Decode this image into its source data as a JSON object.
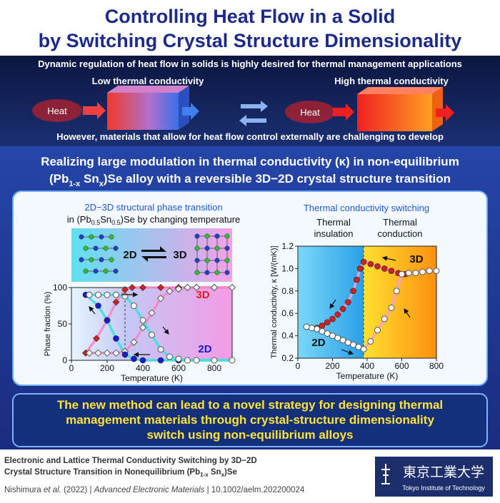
{
  "header": {
    "title": [
      "Controlling Heat Flow in a Solid",
      "by Switching Crystal Structure Dimensionality"
    ]
  },
  "banner": {
    "intro": "Dynamic regulation of heat flow in solids is highly desired for thermal management applications",
    "low_label": "Low thermal conductivity",
    "high_label": "High thermal conductivity",
    "heat_left": "Heat",
    "heat_right": "Heat",
    "challenge": "However, materials that allow for heat flow control externally are challenging to develop"
  },
  "headline": {
    "line1": "Realizing large modulation in thermal conductivity (κ) in non-equilibrium",
    "line2": [
      "(Pb",
      "1-x",
      " Sn",
      "x",
      ")Se alloy with a reversible 3D−2D crystal structure transition"
    ]
  },
  "left_panel": {
    "title": "2D−3D structural phase transition",
    "subtitle": [
      "in (Pb",
      "0.5",
      "Sn",
      "0.5",
      ")Se by changing temperature"
    ],
    "structure_2d": "2D",
    "structure_3d": "3D"
  },
  "right_panel": {
    "title": "Thermal conductivity switching",
    "insulation": [
      "Thermal",
      "insulation"
    ],
    "conduction": [
      "Thermal",
      "conduction"
    ]
  },
  "chart_data": [
    {
      "type": "scatter",
      "x_label": "Temperature (K)",
      "y_label": "Phase fraction (%)",
      "xlim": [
        0,
        900
      ],
      "xticks": [
        0,
        200,
        400,
        600,
        800
      ],
      "ylim": [
        0,
        100
      ],
      "yticks": [
        0,
        50,
        100
      ],
      "annotations": [
        "3D",
        "2D"
      ],
      "series": [
        {
          "marker": "diamond",
          "filled": true,
          "color": "#d42020",
          "line_color": "#f58ac8",
          "x": [
            80,
            140,
            200,
            250,
            300,
            340,
            400,
            500,
            600,
            700,
            800,
            900
          ],
          "values": [
            10,
            30,
            55,
            80,
            97,
            100,
            100,
            100,
            100,
            100,
            100,
            100
          ]
        },
        {
          "marker": "diamond",
          "filled": false,
          "color": "#ffffff",
          "line_color": "#f58ac8",
          "x": [
            100,
            150,
            200,
            250,
            300,
            350,
            400,
            450,
            500,
            550,
            600,
            650,
            700,
            800,
            900
          ],
          "values": [
            10,
            10,
            10,
            10,
            12,
            25,
            45,
            65,
            85,
            95,
            98,
            100,
            100,
            100,
            100
          ]
        },
        {
          "marker": "circle",
          "filled": true,
          "color": "#1a1ad0",
          "line_color": "#40e0e0",
          "x": [
            80,
            150,
            200,
            250,
            300,
            350,
            400,
            500,
            600,
            700,
            800,
            900
          ],
          "values": [
            90,
            75,
            55,
            30,
            8,
            2,
            0,
            0,
            0,
            0,
            0,
            0
          ]
        },
        {
          "marker": "circle",
          "filled": false,
          "color": "#ffffff",
          "line_color": "#40e0e0",
          "x": [
            100,
            150,
            200,
            250,
            300,
            350,
            400,
            450,
            500,
            550,
            600,
            650,
            700,
            800,
            900
          ],
          "values": [
            90,
            90,
            90,
            90,
            88,
            75,
            55,
            35,
            15,
            5,
            2,
            0,
            0,
            0,
            0
          ]
        }
      ]
    },
    {
      "type": "scatter",
      "x_label": "Temperature (K)",
      "y_label": "Thermal conductivity, κ [W/(mK)]",
      "xlim": [
        0,
        800
      ],
      "xticks": [
        0,
        200,
        400,
        600,
        800
      ],
      "ylim": [
        0.2,
        1.2
      ],
      "yticks": [
        0.2,
        0.4,
        0.6,
        0.8,
        {
          "value": 1,
          "label": "1.0"
        },
        1.2
      ],
      "annotations": [
        "3D",
        "2D"
      ],
      "series": [
        {
          "marker": "circle",
          "filled": true,
          "color": "#d42020",
          "line_color": "#f0a0d8",
          "x": [
            50,
            80,
            110,
            140,
            170,
            200,
            230,
            260,
            290,
            320,
            340,
            360,
            380,
            420,
            460,
            500,
            540,
            580,
            620
          ],
          "values": [
            0.48,
            0.47,
            0.47,
            0.49,
            0.52,
            0.55,
            0.59,
            0.64,
            0.7,
            0.8,
            0.9,
            1.0,
            1.06,
            1.04,
            1.02,
            1.0,
            0.98,
            0.96,
            0.95
          ]
        },
        {
          "marker": "circle",
          "filled": false,
          "color": "#ffffff",
          "line_color": "#f0a0d8",
          "x": [
            800,
            760,
            720,
            680,
            640,
            600,
            570,
            540,
            500,
            460,
            420,
            380,
            350,
            320,
            290,
            260,
            230,
            200,
            170,
            140,
            110,
            80,
            50
          ],
          "values": [
            0.98,
            0.98,
            0.97,
            0.96,
            0.96,
            0.95,
            0.8,
            0.65,
            0.55,
            0.45,
            0.35,
            0.28,
            0.3,
            0.32,
            0.34,
            0.36,
            0.38,
            0.4,
            0.42,
            0.44,
            0.46,
            0.47,
            0.48
          ]
        }
      ]
    }
  ],
  "conclusion": [
    "The new method can lead to a novel strategy for designing thermal",
    "management materials through crystal-structure dimensionality",
    "switch using non-equilibrium alloys"
  ],
  "footer": {
    "citation_title": [
      "Electronic and Lattice Thermal Conductivity Switching by 3D−2D",
      "Crystal Structure Transition in Nonequilibrium (Pb",
      "1-x",
      " Sn",
      "x",
      ")Se"
    ],
    "reference": [
      "Nishimura ",
      "et al.",
      " (2022)  |  ",
      "Advanced Electronic Materials",
      "  |  10.1002/aelm.202200024"
    ],
    "logo_name": "東京工業大学",
    "logo_english": "Tokyo Institute of Technology"
  }
}
